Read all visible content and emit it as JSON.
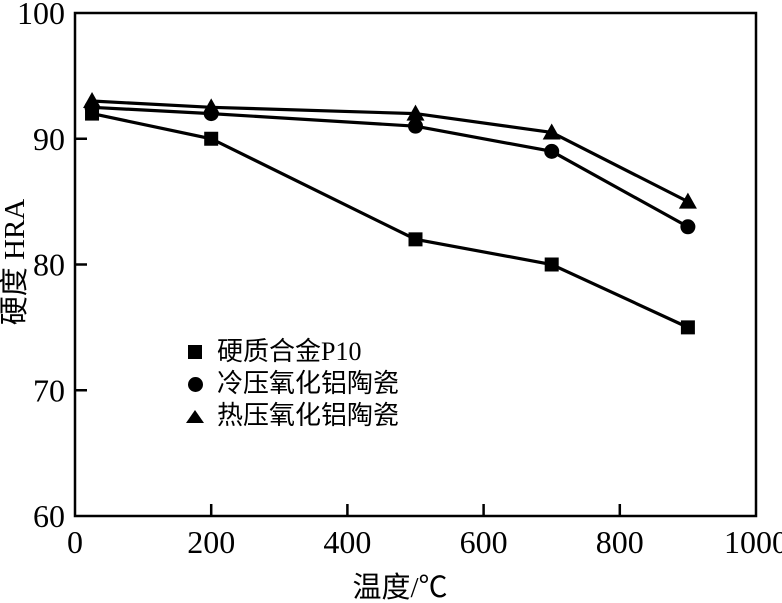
{
  "figure": {
    "background": "#ffffff",
    "ink": "#000000"
  },
  "chart_data": {
    "type": "line",
    "title": "",
    "xlabel": "温度/℃",
    "ylabel": "硬度 HRA",
    "xlim": [
      0,
      1000
    ],
    "ylim": [
      60,
      100
    ],
    "x_ticks": [
      0,
      200,
      400,
      600,
      800,
      1000
    ],
    "y_ticks": [
      60,
      70,
      80,
      90,
      100
    ],
    "grid": false,
    "legend_position": "inside-center-left",
    "x": [
      25,
      200,
      500,
      700,
      900
    ],
    "series": [
      {
        "name": "硬质合金P10",
        "marker": "square",
        "values": [
          92,
          90,
          82,
          80,
          75
        ]
      },
      {
        "name": "冷压氧化铝陶瓷",
        "marker": "circle",
        "values": [
          92.5,
          92,
          91,
          89,
          83
        ]
      },
      {
        "name": "热压氧化铝陶瓷",
        "marker": "triangle",
        "values": [
          93,
          92.5,
          92,
          90.5,
          85
        ]
      }
    ]
  }
}
